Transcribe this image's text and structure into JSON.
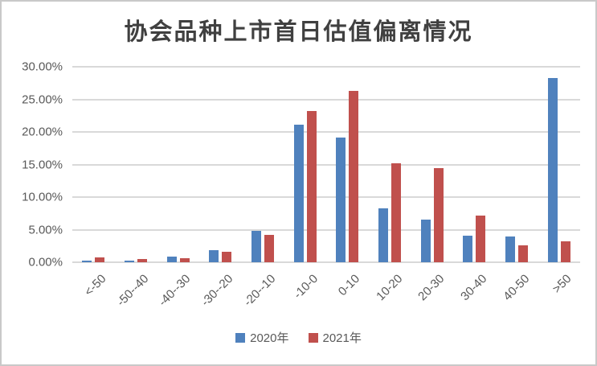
{
  "title": "协会品种上市首日估值偏离情况",
  "chart_data": {
    "type": "bar",
    "title": "协会品种上市首日估值偏离情况",
    "categories": [
      "<-50",
      "-50--40",
      "-40--30",
      "-30--20",
      "-20--10",
      "-10-0",
      "0-10",
      "10-20",
      "20-30",
      "30-40",
      "40-50",
      ">50"
    ],
    "series": [
      {
        "name": "2020年",
        "color": "#4F81BD",
        "values": [
          0.3,
          0.3,
          0.9,
          1.9,
          4.8,
          21.1,
          19.1,
          8.3,
          6.6,
          4.1,
          3.9,
          28.3
        ]
      },
      {
        "name": "2021年",
        "color": "#C0504D",
        "values": [
          0.7,
          0.5,
          0.6,
          1.6,
          4.2,
          23.2,
          26.3,
          15.2,
          14.5,
          7.2,
          2.6,
          3.2
        ]
      }
    ],
    "value_unit": "percent",
    "xlabel": "",
    "ylabel": "",
    "ylim": [
      0,
      30
    ],
    "y_ticks": [
      0,
      5,
      10,
      15,
      20,
      25,
      30
    ],
    "y_tick_labels": [
      "0.00%",
      "5.00%",
      "10.00%",
      "15.00%",
      "20.00%",
      "25.00%",
      "30.00%"
    ],
    "grid": true,
    "legend_position": "bottom",
    "colors": {
      "grid": "#D9D9D9",
      "axis_text": "#595959",
      "title_text": "#404040",
      "border": "#C9C9C9",
      "background": "#FFFFFF"
    }
  }
}
